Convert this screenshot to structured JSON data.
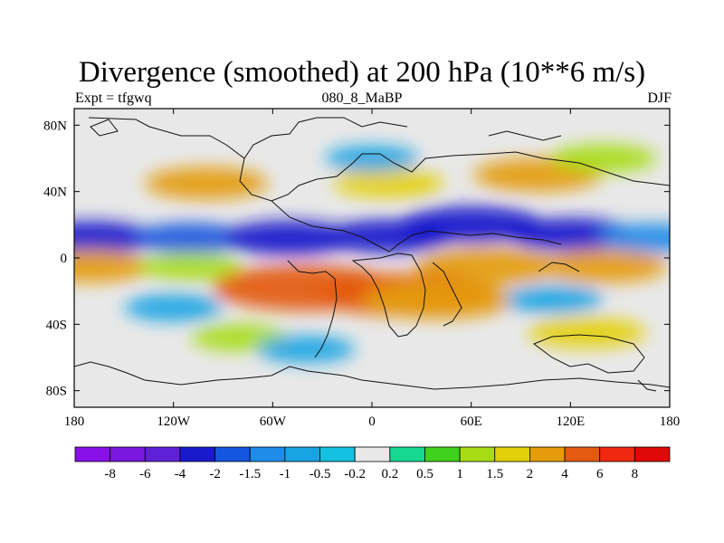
{
  "chart_data": {
    "type": "contour-map",
    "title": "Divergence (smoothed) at 200 hPa (10**6 m/s)",
    "subtitle_left": "Expt = tfgwq",
    "subtitle_center": "080_8_MaBP",
    "subtitle_right": "DJF",
    "x_axis": {
      "range": [
        -180,
        180
      ],
      "ticks": [
        {
          "value": -180,
          "label": "180"
        },
        {
          "value": -120,
          "label": "120W"
        },
        {
          "value": -60,
          "label": "60W"
        },
        {
          "value": 0,
          "label": "0"
        },
        {
          "value": 60,
          "label": "60E"
        },
        {
          "value": 120,
          "label": "120E"
        },
        {
          "value": 180,
          "label": "180"
        }
      ]
    },
    "y_axis": {
      "range": [
        -90,
        90
      ],
      "ticks": [
        {
          "value": 80,
          "label": "80N"
        },
        {
          "value": 40,
          "label": "40N"
        },
        {
          "value": 0,
          "label": "0"
        },
        {
          "value": -40,
          "label": "40S"
        },
        {
          "value": -80,
          "label": "80S"
        }
      ]
    },
    "colorbar": {
      "colors": [
        "#8a10e8",
        "#7a18e0",
        "#6020d8",
        "#1a1acc",
        "#1456e0",
        "#1e8ce8",
        "#18a4e4",
        "#14c0e0",
        "#e8e8e8",
        "#16d890",
        "#40d01e",
        "#a8dc14",
        "#e4d00a",
        "#e49c0a",
        "#e45a10",
        "#f02810",
        "#e00808"
      ],
      "labels": [
        "-8",
        "-6",
        "-4",
        "-2",
        "-1.5",
        "-1",
        "-0.5",
        "-0.2",
        "0.2",
        "0.5",
        "1",
        "1.5",
        "2",
        "4",
        "6",
        "8"
      ]
    },
    "fields": [
      {
        "lon": -170,
        "lat": 12,
        "value": -2.2
      },
      {
        "lon": -110,
        "lat": 12,
        "value": -1.6
      },
      {
        "lon": -50,
        "lat": 12,
        "value": -2.4
      },
      {
        "lon": 10,
        "lat": 13,
        "value": -2.2
      },
      {
        "lon": 60,
        "lat": 20,
        "value": -2.8
      },
      {
        "lon": 120,
        "lat": 14,
        "value": -2.2
      },
      {
        "lon": 170,
        "lat": 12,
        "value": -1.4
      },
      {
        "lon": -170,
        "lat": -5,
        "value": 2.0
      },
      {
        "lon": -110,
        "lat": -5,
        "value": 1.2
      },
      {
        "lon": 70,
        "lat": -5,
        "value": 2.8
      },
      {
        "lon": 140,
        "lat": -5,
        "value": 2.2
      },
      {
        "lon": -40,
        "lat": -18,
        "value": 4.5
      },
      {
        "lon": 20,
        "lat": -22,
        "value": 4.0
      },
      {
        "lon": 40,
        "lat": -25,
        "value": 3.2
      },
      {
        "lon": -100,
        "lat": 45,
        "value": 2.0
      },
      {
        "lon": 10,
        "lat": 45,
        "value": 1.5
      },
      {
        "lon": 100,
        "lat": 50,
        "value": 2.2
      },
      {
        "lon": 140,
        "lat": 60,
        "value": 1.3
      },
      {
        "lon": 130,
        "lat": -45,
        "value": 1.8
      },
      {
        "lon": -80,
        "lat": -48,
        "value": 1.0
      },
      {
        "lon": -120,
        "lat": -30,
        "value": -1.0
      },
      {
        "lon": 110,
        "lat": -25,
        "value": -1.0
      },
      {
        "lon": 0,
        "lat": 60,
        "value": -0.8
      },
      {
        "lon": -40,
        "lat": -55,
        "value": -1.0
      }
    ]
  }
}
